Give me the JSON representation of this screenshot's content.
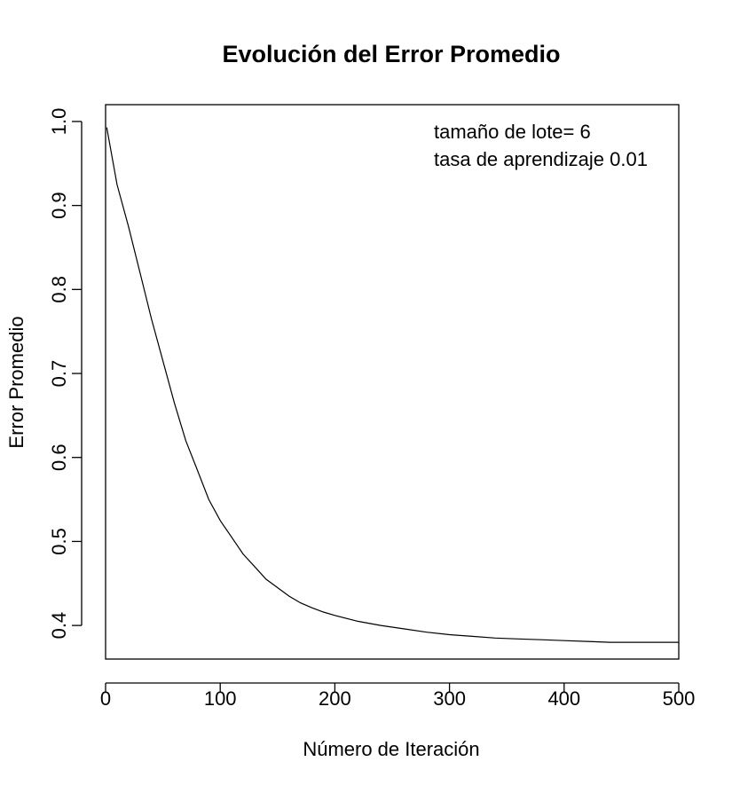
{
  "chart_data": {
    "type": "line",
    "title": "Evolución del Error Promedio",
    "xlabel": "Número de Iteración",
    "ylabel": "Error Promedio",
    "xlim": [
      0,
      500
    ],
    "ylim": [
      0.36,
      1.02
    ],
    "xticks": [
      0,
      100,
      200,
      300,
      400,
      500
    ],
    "yticks": [
      0.4,
      0.5,
      0.6,
      0.7,
      0.8,
      0.9,
      1.0
    ],
    "ytick_labels": [
      "0.4",
      "0.5",
      "0.6",
      "0.7",
      "0.8",
      "0.9",
      "1.0"
    ],
    "annotations": [
      "tamaño de lote= 6",
      "tasa de aprendizaje 0.01"
    ],
    "grid": false,
    "series": [
      {
        "x": [
          1,
          10,
          20,
          30,
          40,
          50,
          60,
          70,
          80,
          90,
          100,
          110,
          120,
          130,
          140,
          150,
          160,
          170,
          180,
          190,
          200,
          220,
          240,
          260,
          280,
          300,
          320,
          340,
          360,
          380,
          400,
          420,
          440,
          460,
          480,
          500
        ],
        "values": [
          0.993,
          0.925,
          0.875,
          0.82,
          0.765,
          0.715,
          0.665,
          0.62,
          0.585,
          0.55,
          0.525,
          0.505,
          0.485,
          0.47,
          0.455,
          0.445,
          0.435,
          0.427,
          0.421,
          0.416,
          0.412,
          0.405,
          0.4,
          0.396,
          0.392,
          0.389,
          0.387,
          0.385,
          0.384,
          0.383,
          0.382,
          0.381,
          0.38,
          0.38,
          0.38,
          0.38
        ]
      }
    ]
  }
}
